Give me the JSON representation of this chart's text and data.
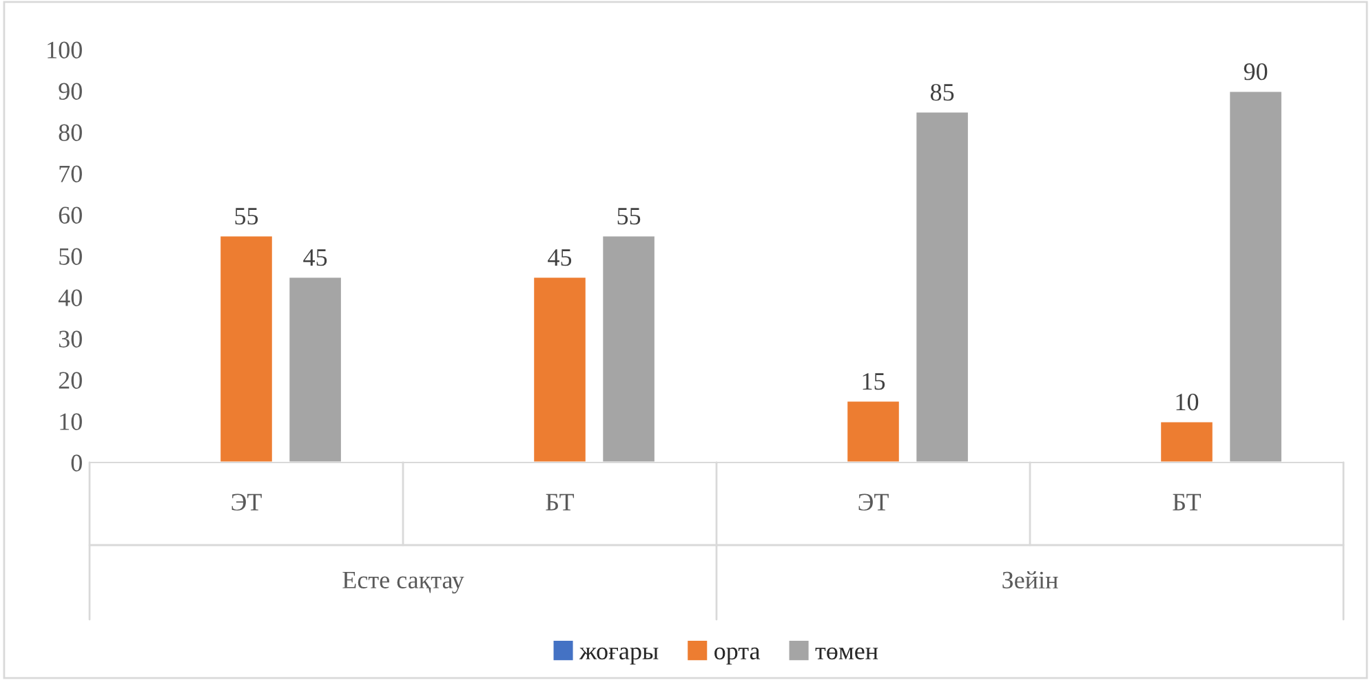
{
  "chart_data": {
    "type": "bar",
    "categories": [
      "ЭТ",
      "БТ",
      "ЭТ",
      "БТ"
    ],
    "series": [
      {
        "name": "жоғары",
        "color": "#4472c4",
        "values": [
          null,
          null,
          null,
          null
        ],
        "value_labels": [
          null,
          null,
          null,
          null
        ]
      },
      {
        "name": "орта",
        "color": "#ed7d31",
        "values": [
          55,
          45,
          15,
          10
        ],
        "value_labels": [
          "55",
          "45",
          "15",
          "10"
        ]
      },
      {
        "name": "төмен",
        "color": "#a5a5a5",
        "values": [
          45,
          55,
          85,
          90
        ],
        "value_labels": [
          "45",
          "55",
          "85",
          "90"
        ]
      }
    ],
    "annotations": [
      "Есте сақтау",
      "Зейін"
    ],
    "ylim": [
      0,
      100
    ],
    "yticks": [
      0,
      10,
      20,
      30,
      40,
      50,
      60,
      70,
      80,
      90,
      100
    ],
    "grid": false,
    "legend": "bottom"
  }
}
